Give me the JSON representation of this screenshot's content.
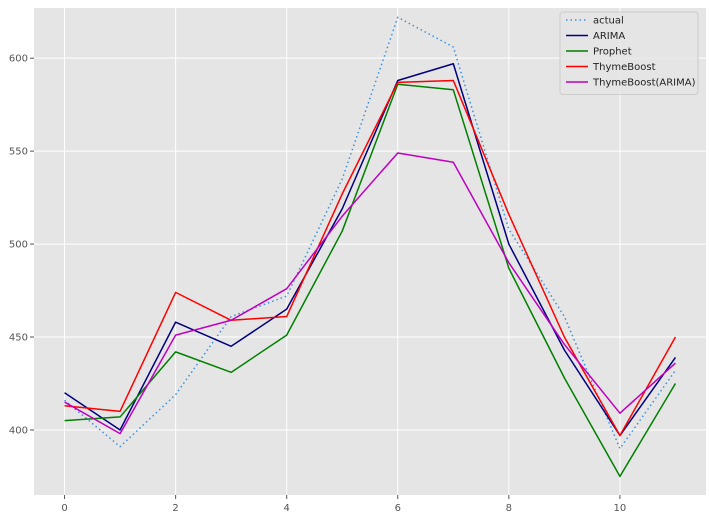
{
  "chart_data": {
    "type": "line",
    "title": "",
    "xlabel": "",
    "ylabel": "",
    "x": [
      0,
      1,
      2,
      3,
      4,
      5,
      6,
      7,
      8,
      9,
      10,
      11
    ],
    "xlim": [
      -0.55,
      11.55
    ],
    "ylim": [
      365,
      627
    ],
    "xticks": [
      0,
      2,
      4,
      6,
      8,
      10
    ],
    "yticks": [
      400,
      450,
      500,
      550,
      600
    ],
    "grid": true,
    "background": "#e5e5e5",
    "grid_color": "#ffffff",
    "legend_position": "top-right",
    "series": [
      {
        "name": "actual",
        "color": "#3a8fe0",
        "dash": "dotted",
        "values": [
          416,
          391,
          419,
          461,
          472,
          535,
          622,
          606,
          508,
          461,
          390,
          432
        ]
      },
      {
        "name": "ARIMA",
        "color": "#000080",
        "dash": "solid",
        "values": [
          420,
          400,
          458,
          445,
          465,
          519,
          588,
          597,
          500,
          443,
          397,
          439
        ]
      },
      {
        "name": "Prophet",
        "color": "#008000",
        "dash": "solid",
        "values": [
          405,
          407,
          442,
          431,
          451,
          507,
          586,
          583,
          487,
          428,
          375,
          425
        ]
      },
      {
        "name": "ThymeBoost",
        "color": "#ff0000",
        "dash": "solid",
        "values": [
          413,
          410,
          474,
          459,
          461,
          527,
          587,
          588,
          516,
          450,
          397,
          450
        ]
      },
      {
        "name": "ThymeBoost(ARIMA)",
        "color": "#c000c0",
        "dash": "solid",
        "values": [
          415,
          398,
          451,
          459,
          476,
          515,
          549,
          544,
          490,
          446,
          409,
          436
        ]
      }
    ]
  }
}
